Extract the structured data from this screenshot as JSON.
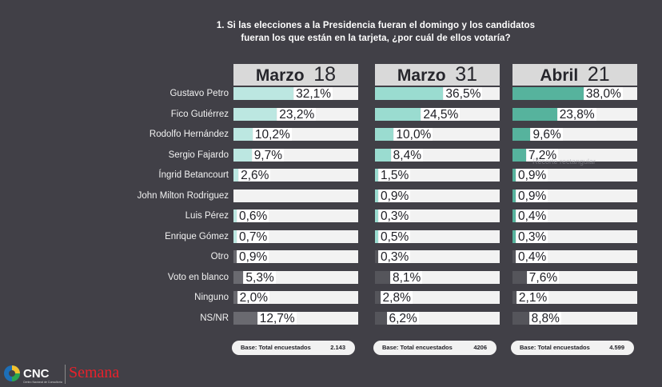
{
  "colors": {
    "background": "#414047",
    "candidate_m18": "#bce7e1",
    "candidate_m31": "#9adcd0",
    "candidate_a21": "#56b39d",
    "other_light": "#6a6a70",
    "other_dark": "#55555b",
    "track": "#f2f2f2"
  },
  "title_line1": "1. Si las elecciones a la Presidencia fueran el domingo y los candidatos",
  "title_line2": "fueran los que están en la tarjeta, ¿por cuál de ellos votaría?",
  "logos": {
    "cnc": "CNC",
    "cnc_sub": "Centro Nacional de Consultoría",
    "semana": "Semana"
  },
  "ghost_label": "Recorte rectangular",
  "chart_data": {
    "type": "bar",
    "orientation": "horizontal",
    "title": "1. Si las elecciones a la Presidencia fueran el domingo y los candidatos fueran los que están en la tarjeta, ¿por cuál de ellos votaría?",
    "categories": [
      "Gustavo Petro",
      "Fico Gutiérrez",
      "Rodolfo Hernández",
      "Sergio Fajardo",
      "Íngrid Betancourt",
      "John Milton Rodriguez",
      "Luis Pérez",
      "Enrique Gómez",
      "Otro",
      "Voto en blanco",
      "Ninguno",
      "NS/NR"
    ],
    "category_kind": [
      "candidate",
      "candidate",
      "candidate",
      "candidate",
      "candidate",
      "candidate",
      "candidate",
      "candidate",
      "other",
      "other",
      "other",
      "other"
    ],
    "xlim": [
      0,
      100
    ],
    "series": [
      {
        "name": "Marzo 18",
        "month": "Marzo",
        "day": "18",
        "values": [
          32.1,
          23.2,
          10.2,
          9.7,
          2.6,
          null,
          0.6,
          0.7,
          0.9,
          5.3,
          2.0,
          12.7
        ],
        "labels": [
          "32,1%",
          "23,2%",
          "10,2%",
          "9,7%",
          "2,6%",
          "",
          "0,6%",
          "0,7%",
          "0,9%",
          "5,3%",
          "2,0%",
          "12,7%"
        ],
        "base_label": "Base: Total encuestados",
        "base_value": "2.143"
      },
      {
        "name": "Marzo 31",
        "month": "Marzo",
        "day": "31",
        "values": [
          36.5,
          24.5,
          10.0,
          8.4,
          1.5,
          0.9,
          0.3,
          0.5,
          0.3,
          8.1,
          2.8,
          6.2
        ],
        "labels": [
          "36,5%",
          "24,5%",
          "10,0%",
          "8,4%",
          "1,5%",
          "0,9%",
          "0,3%",
          "0,5%",
          "0,3%",
          "8,1%",
          "2,8%",
          "6,2%"
        ],
        "base_label": "Base: Total encuestados",
        "base_value": "4206"
      },
      {
        "name": "Abril 21",
        "month": "Abril",
        "day": "21",
        "values": [
          38.0,
          23.8,
          9.6,
          7.2,
          0.9,
          0.9,
          0.4,
          0.3,
          0.4,
          7.6,
          2.1,
          8.8
        ],
        "labels": [
          "38,0%",
          "23,8%",
          "9,6%",
          "7,2%",
          "0,9%",
          "0,9%",
          "0,4%",
          "0,3%",
          "0,4%",
          "7,6%",
          "2,1%",
          "8,8%"
        ],
        "base_label": "Base: Total encuestados",
        "base_value": "4.599"
      }
    ]
  }
}
